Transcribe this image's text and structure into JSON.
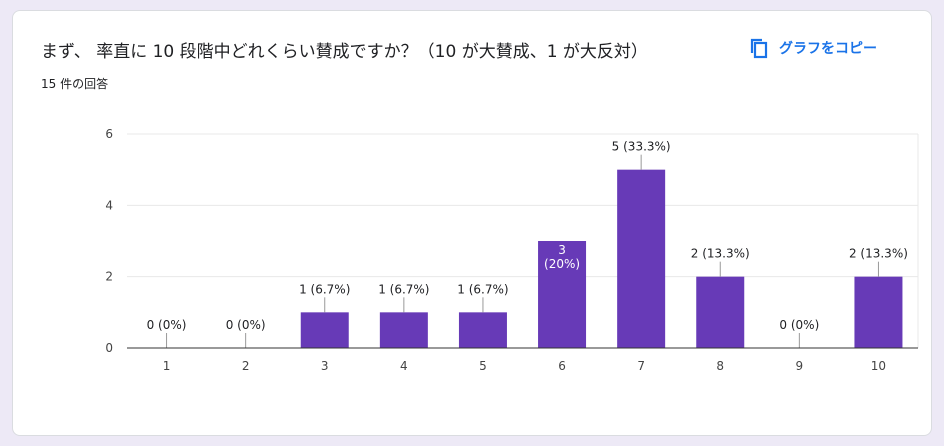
{
  "header": {
    "title": "まず、 率直に 10 段階中どれくらい賛成ですか？（10 が大賛成、1 が大反対）",
    "response_count": "15 件の回答",
    "copy_label": "グラフをコピー",
    "copy_icon": "copy-icon"
  },
  "colors": {
    "bar": "#673ab7",
    "accent": "#1a73e8",
    "text": "#202124",
    "axis_text": "#444444",
    "grid": "#e8e8e8"
  },
  "chart_data": {
    "type": "bar",
    "categories": [
      "1",
      "2",
      "3",
      "4",
      "5",
      "6",
      "7",
      "8",
      "9",
      "10"
    ],
    "values": [
      0,
      0,
      1,
      1,
      1,
      3,
      5,
      2,
      0,
      2
    ],
    "data_labels": [
      "0 (0%)",
      "0 (0%)",
      "1 (6.7%)",
      "1 (6.7%)",
      "1 (6.7%)",
      "3\n(20%)",
      "5 (33.3%)",
      "2 (13.3%)",
      "0 (0%)",
      "2 (13.3%)"
    ],
    "ylim": [
      0,
      6
    ],
    "yticks": [
      0,
      2,
      4,
      6
    ],
    "grid": true,
    "legend": "none"
  }
}
